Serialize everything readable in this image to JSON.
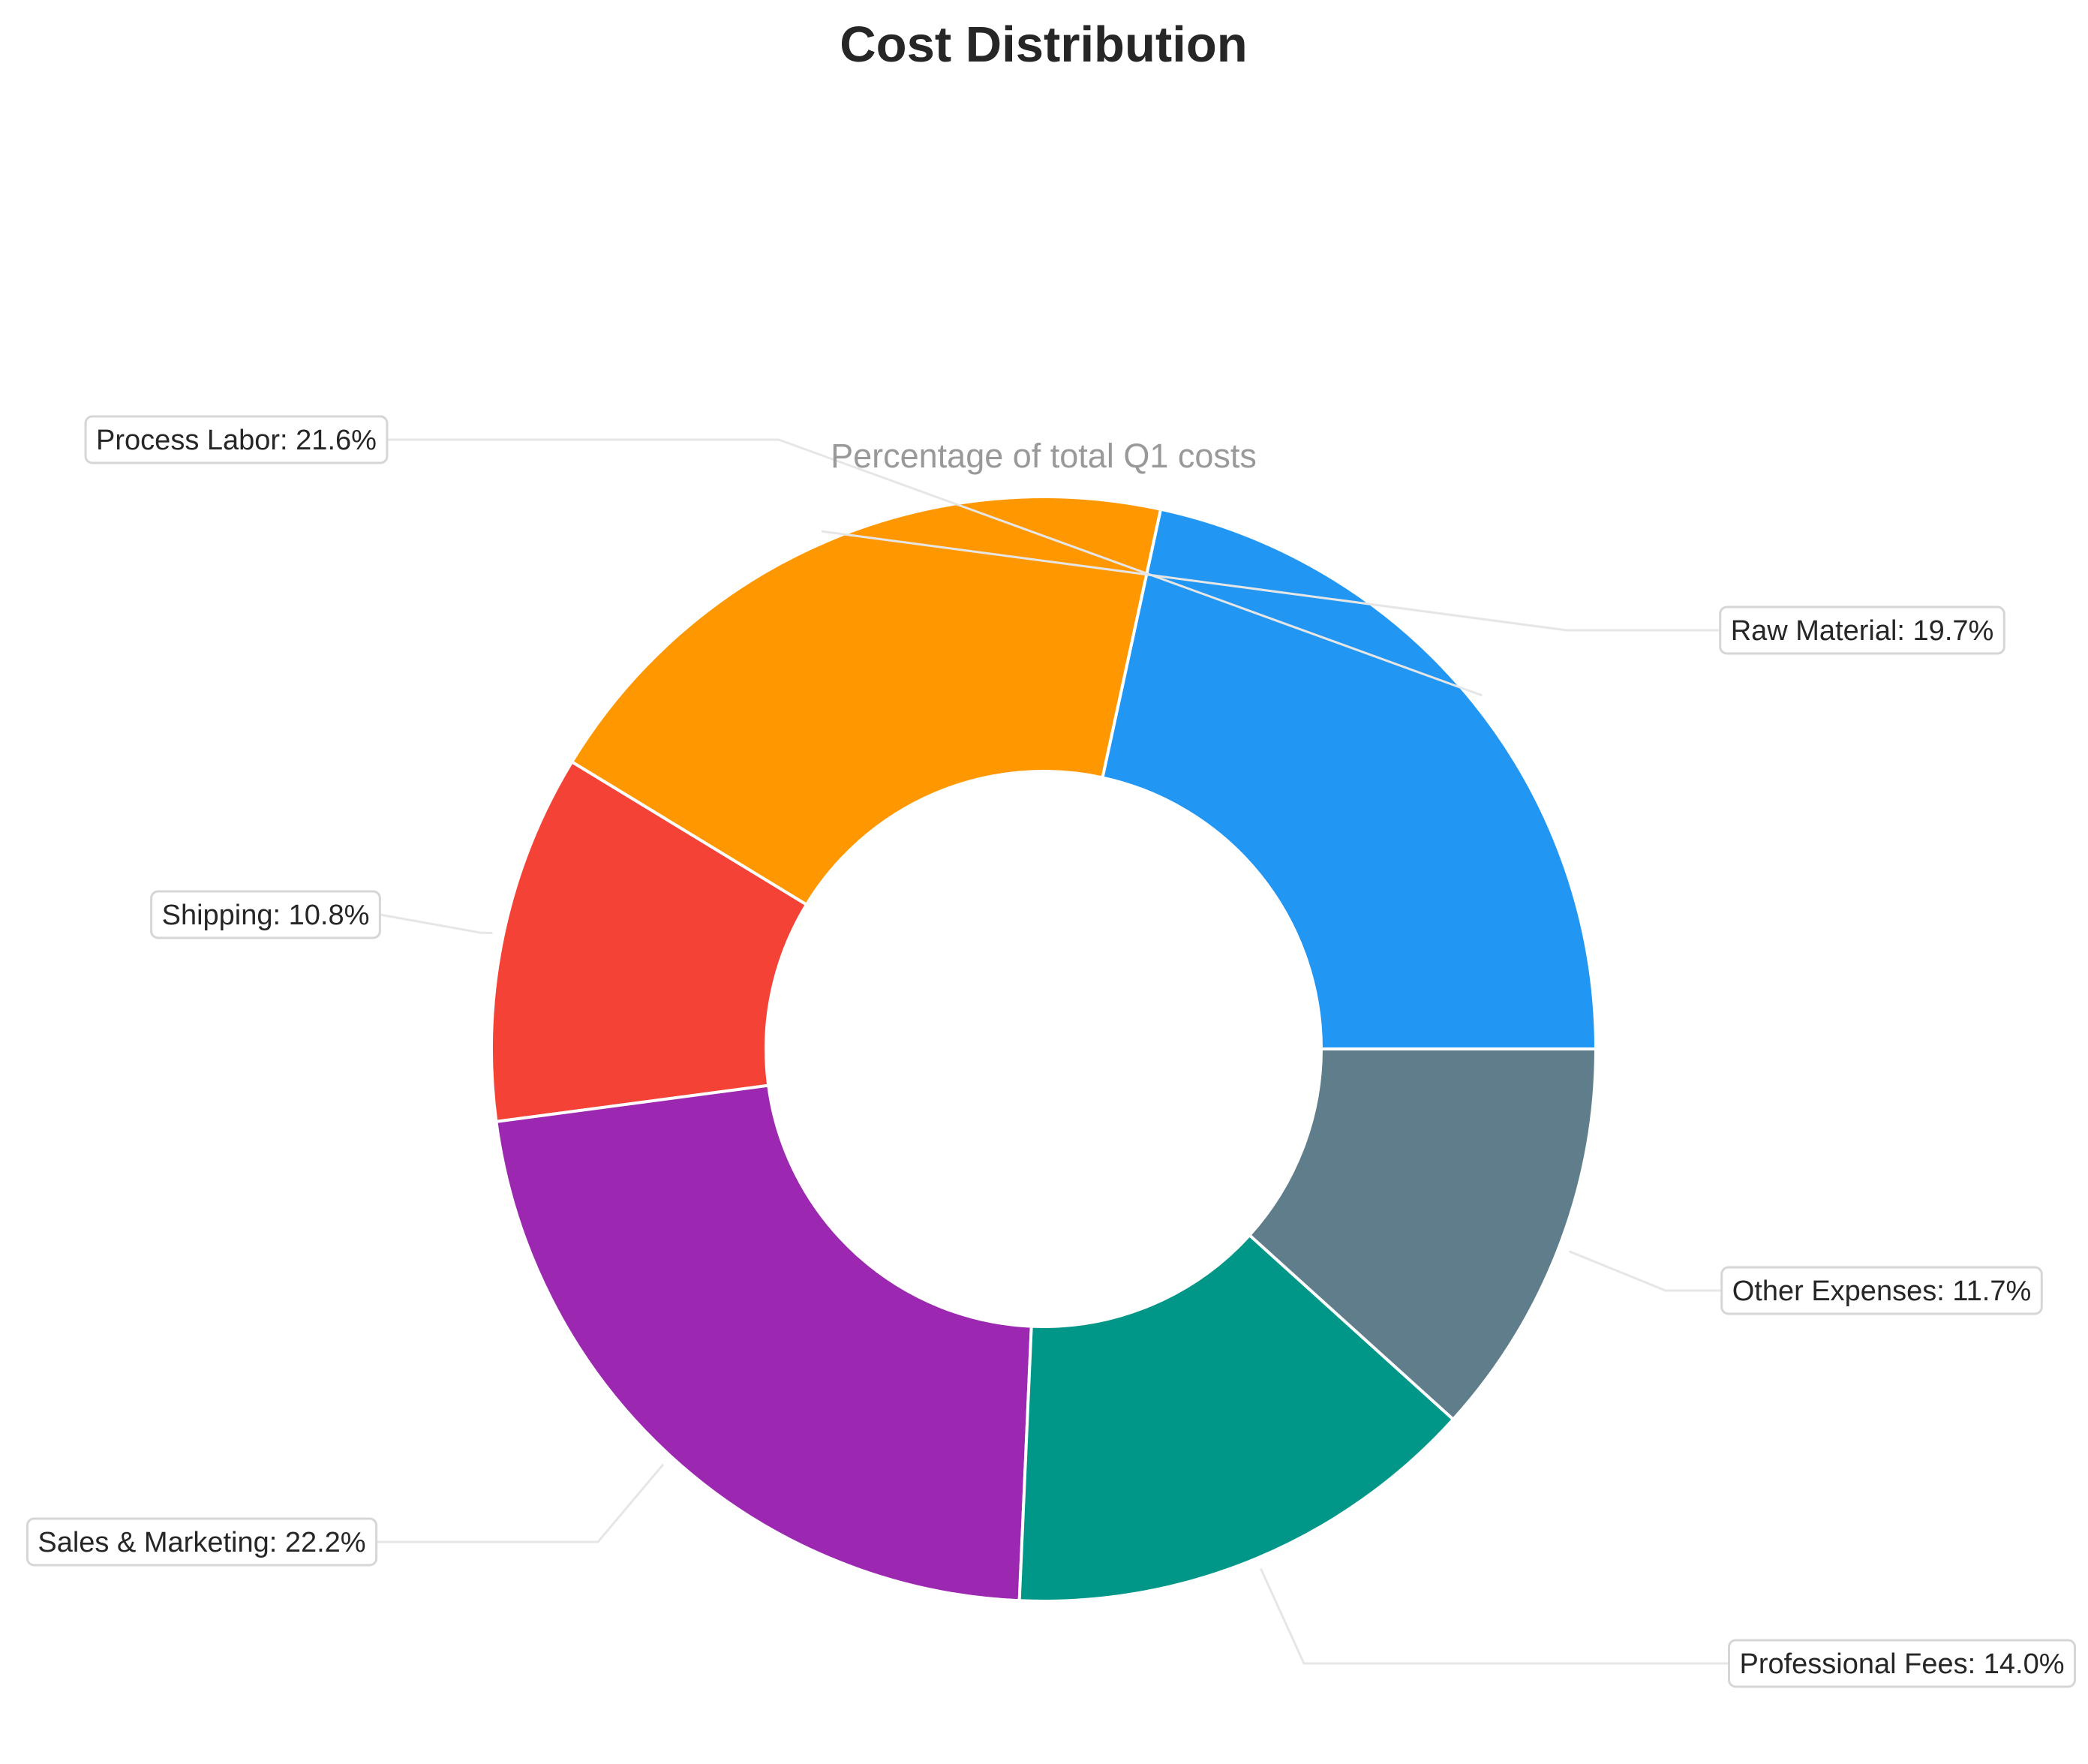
{
  "chart_data": {
    "type": "pie",
    "donut": true,
    "title": "Cost Distribution",
    "subtitle": "Percentage of total Q1 costs",
    "slices": [
      {
        "label": "Process Labor",
        "value": 21.6,
        "color": "#2196F3",
        "display": "Process Labor: 21.6%"
      },
      {
        "label": "Raw Material",
        "value": 19.7,
        "color": "#FF9800",
        "display": "Raw Material: 19.7%"
      },
      {
        "label": "Shipping",
        "value": 10.8,
        "color": "#F44336",
        "display": "Shipping: 10.8%"
      },
      {
        "label": "Sales & Marketing",
        "value": 22.2,
        "color": "#9C27B0",
        "display": "Sales & Marketing: 22.2%"
      },
      {
        "label": "Professional Fees",
        "value": 14.0,
        "color": "#009688",
        "display": "Professional Fees: 14.0%"
      },
      {
        "label": "Other Expenses",
        "value": 11.7,
        "color": "#607D8B",
        "display": "Other Expenses: 11.7%"
      }
    ],
    "start_angle_deg": 0,
    "direction": "counterclockwise",
    "legend": "none"
  }
}
